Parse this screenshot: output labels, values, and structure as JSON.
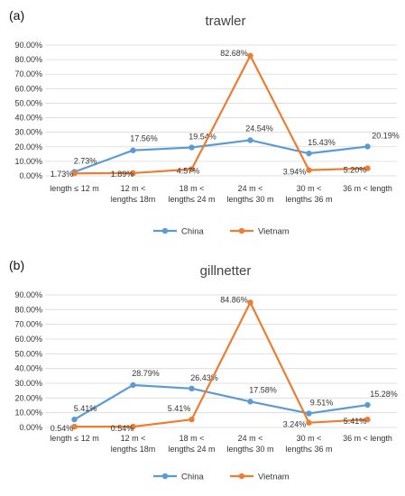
{
  "colors": {
    "china": "#5b9bd5",
    "vietnam": "#ed7d31",
    "grid": "#d9d9d9"
  },
  "chart_data": [
    {
      "panel_label": "(a)",
      "type": "line",
      "title": "trawler",
      "xlabel": "",
      "ylabel": "",
      "ylim": [
        0,
        90
      ],
      "yticks": [
        "0.00%",
        "10.00%",
        "20.00%",
        "30.00%",
        "40.00%",
        "50.00%",
        "60.00%",
        "70.00%",
        "80.00%",
        "90.00%"
      ],
      "grid": true,
      "legend": "bottom",
      "categories": [
        [
          "length ≤ 12 m"
        ],
        [
          "12 m <",
          "length≤ 18m"
        ],
        [
          "18 m <",
          "length≤ 24 m"
        ],
        [
          "24 m <",
          "length≤ 30 m"
        ],
        [
          "30 m <",
          "length≤ 36 m"
        ],
        [
          "36 m < length"
        ]
      ],
      "series": [
        {
          "name": "China",
          "color": "#5b9bd5",
          "values": [
            2.73,
            17.56,
            19.54,
            24.54,
            15.43,
            20.19
          ],
          "labels": [
            "2.73%",
            "17.56%",
            "19.54%",
            "24.54%",
            "15.43%",
            "20.19%"
          ]
        },
        {
          "name": "Vietnam",
          "color": "#ed7d31",
          "values": [
            1.73,
            1.89,
            4.57,
            82.68,
            3.94,
            5.2
          ],
          "labels": [
            "1.73%",
            "1.89%",
            "4.57%",
            "82.68%",
            "3.94%",
            "5.20%"
          ]
        }
      ]
    },
    {
      "panel_label": "(b)",
      "type": "line",
      "title": "gillnetter",
      "xlabel": "",
      "ylabel": "",
      "ylim": [
        0,
        90
      ],
      "yticks": [
        "0.00%",
        "10.00%",
        "20.00%",
        "30.00%",
        "40.00%",
        "50.00%",
        "60.00%",
        "70.00%",
        "80.00%",
        "90.00%"
      ],
      "grid": true,
      "legend": "bottom",
      "categories": [
        [
          "length ≤ 12 m"
        ],
        [
          "12 m <",
          "length≤ 18m"
        ],
        [
          "18 m <",
          "length≤ 24 m"
        ],
        [
          "24 m <",
          "length≤ 30 m"
        ],
        [
          "30 m <",
          "length≤ 36 m"
        ],
        [
          "36 m < length"
        ]
      ],
      "series": [
        {
          "name": "China",
          "color": "#5b9bd5",
          "values": [
            5.41,
            28.79,
            26.43,
            17.58,
            9.51,
            15.28
          ],
          "labels": [
            "5.41%",
            "28.79%",
            "26.43%",
            "17.58%",
            "9.51%",
            "15.28%"
          ]
        },
        {
          "name": "Vietnam",
          "color": "#ed7d31",
          "values": [
            0.54,
            0.54,
            5.41,
            84.86,
            3.24,
            5.41
          ],
          "labels": [
            "0.54%",
            "0.54%",
            "5.41%",
            "84.86%",
            "3.24%",
            "5.41%"
          ]
        }
      ]
    }
  ]
}
